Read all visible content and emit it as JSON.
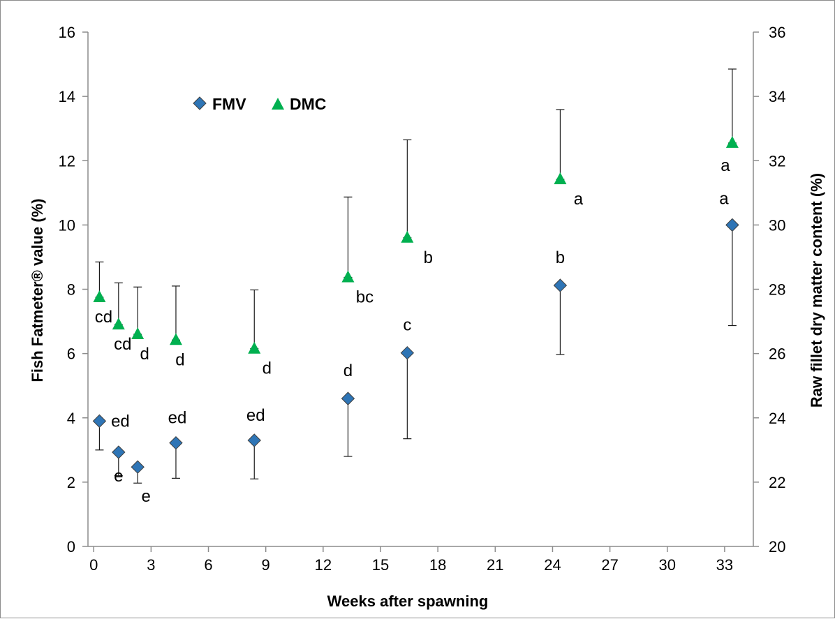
{
  "chart_data": {
    "type": "scatter",
    "xlabel": "Weeks after spawning",
    "ylabel_left": "Fish Fatmeter® value (%)",
    "ylabel_right": "Raw fillet dry matter content (%)",
    "x_ticks": [
      "0",
      "3",
      "6",
      "9",
      "12",
      "15",
      "18",
      "21",
      "24",
      "27",
      "30",
      "33"
    ],
    "y_left_ticks": [
      "0",
      "2",
      "4",
      "6",
      "8",
      "10",
      "12",
      "14",
      "16"
    ],
    "y_right_ticks": [
      "20",
      "22",
      "24",
      "26",
      "28",
      "30",
      "32",
      "34",
      "36"
    ],
    "xlim": [
      -0.3,
      34.5
    ],
    "ylim_left": [
      0,
      16
    ],
    "ylim_right": [
      20,
      36
    ],
    "legend_position": "top-left",
    "colors": {
      "FMV": "#2e75b6",
      "DMC": "#00b050"
    },
    "series": [
      {
        "name": "FMV",
        "axis": "left",
        "marker": "diamond",
        "points": [
          {
            "x": 0.3,
            "y": 3.9,
            "err_low": 0.9,
            "err_high": 0.0,
            "label": "ed"
          },
          {
            "x": 1.3,
            "y": 2.93,
            "err_low": 0.73,
            "err_high": 0.0,
            "label": "e"
          },
          {
            "x": 2.3,
            "y": 2.47,
            "err_low": 0.5,
            "err_high": 0.0,
            "label": "e"
          },
          {
            "x": 4.3,
            "y": 3.22,
            "err_low": 1.1,
            "err_high": 0.0,
            "label": "ed"
          },
          {
            "x": 8.4,
            "y": 3.3,
            "err_low": 1.2,
            "err_high": 0.0,
            "label": "ed"
          },
          {
            "x": 13.3,
            "y": 4.6,
            "err_low": 1.8,
            "err_high": 0.0,
            "label": "d"
          },
          {
            "x": 16.4,
            "y": 6.02,
            "err_low": 2.67,
            "err_high": 0.0,
            "label": "c"
          },
          {
            "x": 24.4,
            "y": 8.12,
            "err_low": 2.15,
            "err_high": 0.0,
            "label": "b"
          },
          {
            "x": 33.4,
            "y": 10.0,
            "err_low": 3.13,
            "err_high": 0.0,
            "label": "a"
          }
        ]
      },
      {
        "name": "DMC",
        "axis": "right",
        "marker": "triangle",
        "points": [
          {
            "x": 0.3,
            "y": 27.75,
            "err_low": 0.0,
            "err_high": 1.1,
            "label": "cd"
          },
          {
            "x": 1.3,
            "y": 26.9,
            "err_low": 0.0,
            "err_high": 1.3,
            "label": "cd"
          },
          {
            "x": 2.3,
            "y": 26.6,
            "err_low": 0.0,
            "err_high": 1.47,
            "label": "d"
          },
          {
            "x": 4.3,
            "y": 26.42,
            "err_low": 0.0,
            "err_high": 1.68,
            "label": "d"
          },
          {
            "x": 8.4,
            "y": 26.15,
            "err_low": 0.0,
            "err_high": 1.83,
            "label": "d"
          },
          {
            "x": 13.3,
            "y": 28.37,
            "err_low": 0.0,
            "err_high": 2.5,
            "label": "bc"
          },
          {
            "x": 16.4,
            "y": 29.6,
            "err_low": 0.0,
            "err_high": 3.05,
            "label": "b"
          },
          {
            "x": 24.4,
            "y": 31.42,
            "err_low": 0.0,
            "err_high": 2.17,
            "label": "a"
          },
          {
            "x": 33.4,
            "y": 32.55,
            "err_low": 0.0,
            "err_high": 2.3,
            "label": "a"
          }
        ]
      }
    ]
  }
}
